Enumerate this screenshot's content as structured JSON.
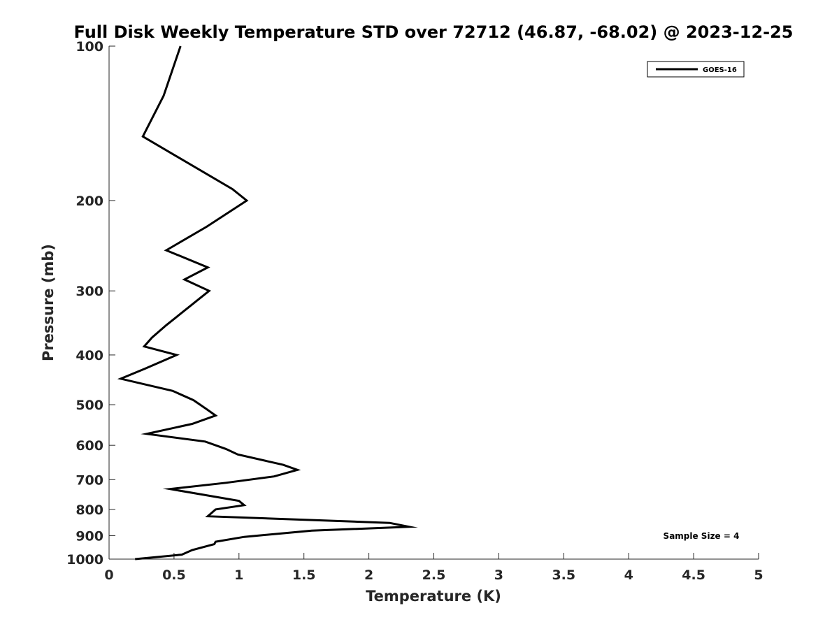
{
  "chart_data": {
    "type": "line",
    "title": "Full Disk Weekly Temperature STD over 72712 (46.87, -68.02) @ 2023-12-25",
    "xlabel": "Temperature (K)",
    "ylabel": "Pressure (mb)",
    "xlim": [
      0,
      5
    ],
    "ylim": [
      100,
      1000
    ],
    "y_scale": "log",
    "y_reversed": true,
    "grid": false,
    "legend_placement": "top-right",
    "x_ticks": [
      "0",
      "0.5",
      "1",
      "1.5",
      "2",
      "2.5",
      "3",
      "3.5",
      "4",
      "4.5",
      "5"
    ],
    "y_ticks": [
      "100",
      "200",
      "300",
      "400",
      "500",
      "600",
      "700",
      "800",
      "900",
      "1000"
    ],
    "annotation": "Sample Size = 4",
    "series": [
      {
        "name": "GOES-16",
        "color": "#000000",
        "points": [
          [
            0.55,
            100
          ],
          [
            0.42,
            125
          ],
          [
            0.26,
            150
          ],
          [
            0.95,
            190
          ],
          [
            1.06,
            200
          ],
          [
            0.75,
            225
          ],
          [
            0.44,
            250
          ],
          [
            0.76,
            270
          ],
          [
            0.58,
            285
          ],
          [
            0.77,
            300
          ],
          [
            0.44,
            350
          ],
          [
            0.33,
            370
          ],
          [
            0.27,
            385
          ],
          [
            0.52,
            400
          ],
          [
            0.28,
            425
          ],
          [
            0.09,
            445
          ],
          [
            0.49,
            470
          ],
          [
            0.65,
            490
          ],
          [
            0.75,
            510
          ],
          [
            0.82,
            525
          ],
          [
            0.64,
            545
          ],
          [
            0.29,
            570
          ],
          [
            0.74,
            590
          ],
          [
            0.9,
            610
          ],
          [
            0.99,
            625
          ],
          [
            1.34,
            655
          ],
          [
            1.45,
            670
          ],
          [
            1.27,
            690
          ],
          [
            0.9,
            710
          ],
          [
            0.47,
            730
          ],
          [
            1.0,
            770
          ],
          [
            1.04,
            785
          ],
          [
            0.82,
            800
          ],
          [
            0.76,
            825
          ],
          [
            2.16,
            850
          ],
          [
            2.31,
            865
          ],
          [
            1.56,
            880
          ],
          [
            1.04,
            905
          ],
          [
            0.82,
            925
          ],
          [
            0.81,
            935
          ],
          [
            0.64,
            960
          ],
          [
            0.56,
            980
          ],
          [
            0.2,
            1000
          ]
        ]
      }
    ]
  }
}
